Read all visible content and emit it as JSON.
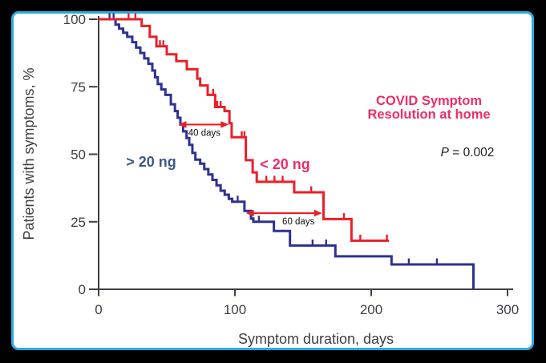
{
  "window": {
    "outer_background": "#000000",
    "card_background": "#ffffff",
    "card_border_color": "#2bace2"
  },
  "chart_data": {
    "type": "line",
    "subtype": "kaplan-meier-step-curves",
    "title": "COVID Symptom\nResolution at home",
    "title_color": "#ee2d68",
    "p_value": {
      "symbol": "P",
      "rest": " = 0.002"
    },
    "xlabel": "Symptom duration, days",
    "ylabel": "Patients with symptoms, %",
    "xlim": [
      0,
      300
    ],
    "ylim": [
      0,
      100
    ],
    "xticks": [
      0,
      100,
      200,
      300
    ],
    "yticks": [
      100,
      75,
      50,
      25,
      0
    ],
    "grid": false,
    "legend_position": "inline-labels",
    "axis_color": "#3d3f44",
    "series": [
      {
        "name": "> 20 ng",
        "color": "#2e3192",
        "label_color": "#3d5787",
        "end_day": 275,
        "points": [
          [
            0,
            100
          ],
          [
            12.4,
            98
          ],
          [
            15,
            96.5
          ],
          [
            18,
            95
          ],
          [
            21,
            93.5
          ],
          [
            24.7,
            91.5
          ],
          [
            27.5,
            89.5
          ],
          [
            30.6,
            87.5
          ],
          [
            33.5,
            85.5
          ],
          [
            36.5,
            83.5
          ],
          [
            39.4,
            81
          ],
          [
            41.4,
            78.5
          ],
          [
            43.4,
            76
          ],
          [
            46,
            74
          ],
          [
            49,
            72
          ],
          [
            53,
            68.5
          ],
          [
            56,
            66
          ],
          [
            58,
            63.5
          ],
          [
            60,
            61
          ],
          [
            62,
            58.5
          ],
          [
            64.5,
            56
          ],
          [
            66.5,
            53.5
          ],
          [
            68.8,
            50.5
          ],
          [
            71,
            48
          ],
          [
            74.5,
            46.5
          ],
          [
            77.5,
            44.5
          ],
          [
            80.5,
            42.5
          ],
          [
            83.5,
            40.5
          ],
          [
            86.5,
            38.5
          ],
          [
            89.5,
            36.5
          ],
          [
            92.5,
            35
          ],
          [
            95.5,
            33.5
          ],
          [
            98,
            32.4
          ],
          [
            107,
            29
          ],
          [
            111.8,
            26.2
          ],
          [
            113.5,
            25
          ],
          [
            128.6,
            21.6
          ],
          [
            140.4,
            16.2
          ],
          [
            173.7,
            12.2
          ],
          [
            214.9,
            9.2
          ],
          [
            275,
            0
          ]
        ],
        "censor_ticks": [
          [
            8,
            100
          ],
          [
            11,
            100
          ],
          [
            102,
            32.4
          ],
          [
            117.6,
            25
          ],
          [
            157,
            16.2
          ],
          [
            166.9,
            16.2
          ],
          [
            227.6,
            9.2
          ],
          [
            248.2,
            9.2
          ]
        ]
      },
      {
        "name": "< 20 ng",
        "color": "#e8202a",
        "label_color": "#ee2d68",
        "end_day": 213,
        "points": [
          [
            0,
            100
          ],
          [
            31.6,
            97.5
          ],
          [
            37.5,
            93.5
          ],
          [
            42.4,
            90
          ],
          [
            50,
            87
          ],
          [
            57,
            84.5
          ],
          [
            64.7,
            81.5
          ],
          [
            72.4,
            78
          ],
          [
            74.5,
            75.5
          ],
          [
            80,
            72
          ],
          [
            85.5,
            67.5
          ],
          [
            92.4,
            66
          ],
          [
            96,
            61.5
          ],
          [
            97.6,
            56.3
          ],
          [
            108,
            47.8
          ],
          [
            113,
            43.3
          ],
          [
            116,
            39.8
          ],
          [
            143.5,
            35.9
          ],
          [
            165,
            26
          ],
          [
            185.5,
            18
          ]
        ],
        "censor_ticks": [
          [
            22,
            100
          ],
          [
            27,
            100
          ],
          [
            45,
            90
          ],
          [
            47.5,
            90
          ],
          [
            84,
            72
          ],
          [
            87,
            67.5
          ],
          [
            89.5,
            67.5
          ],
          [
            105,
            56.3
          ],
          [
            107,
            56.3
          ],
          [
            123,
            39.8
          ],
          [
            129,
            39.8
          ],
          [
            135,
            39.8
          ],
          [
            156,
            35.9
          ],
          [
            180,
            26
          ],
          [
            192,
            18
          ],
          [
            211.5,
            18
          ]
        ]
      }
    ],
    "annotations": {
      "arrows": [
        {
          "label": "40 days",
          "x1": 58.5,
          "x2": 95.5,
          "y_pct": 61,
          "label_dx": 1,
          "color": "#e8202a"
        },
        {
          "label": "60 days",
          "x1": 108,
          "x2": 164,
          "y_pct": 28.2,
          "label_dx": 18,
          "color": "#e8202a"
        }
      ]
    }
  }
}
